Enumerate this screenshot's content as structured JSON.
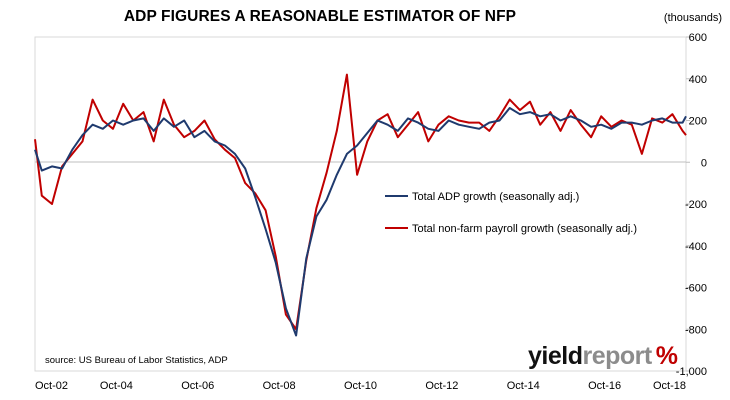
{
  "chart_data": {
    "type": "line",
    "title": "ADP FIGURES A REASONABLE ESTIMATOR OF NFP",
    "unit_label": "(thousands)",
    "x_tick_labels": [
      "Oct-02",
      "Oct-04",
      "Oct-06",
      "Oct-08",
      "Oct-10",
      "Oct-12",
      "Oct-14",
      "Oct-16",
      "Oct-18"
    ],
    "y_ticks": [
      600,
      400,
      200,
      0,
      -200,
      -400,
      -600,
      -800,
      -1000
    ],
    "y_tick_labels": [
      "600",
      "400",
      "200",
      "0",
      "-200",
      "-400",
      "-600",
      "-800",
      "-1,000"
    ],
    "ylim": [
      -1000,
      600
    ],
    "x_range": [
      "2002-10",
      "2018-10"
    ],
    "y_axis_side": "right",
    "grid": false,
    "legend_position": "center-right",
    "source": "source: US Bureau of Labor Statistics, ADP",
    "logo": {
      "part1": "yield",
      "part2": "report",
      "part3": "%"
    },
    "series": [
      {
        "name": "Total ADP growth (seasonally adj.)",
        "color": "#1f3a6e",
        "x": [
          "2002-10",
          "2002-12",
          "2003-03",
          "2003-06",
          "2003-09",
          "2003-12",
          "2004-03",
          "2004-06",
          "2004-09",
          "2004-12",
          "2005-03",
          "2005-06",
          "2005-09",
          "2005-12",
          "2006-03",
          "2006-06",
          "2006-09",
          "2006-12",
          "2007-03",
          "2007-06",
          "2007-09",
          "2007-12",
          "2008-03",
          "2008-06",
          "2008-09",
          "2008-12",
          "2009-03",
          "2009-06",
          "2009-09",
          "2009-12",
          "2010-03",
          "2010-06",
          "2010-09",
          "2010-12",
          "2011-03",
          "2011-06",
          "2011-09",
          "2011-12",
          "2012-03",
          "2012-06",
          "2012-09",
          "2012-12",
          "2013-03",
          "2013-06",
          "2013-09",
          "2013-12",
          "2014-03",
          "2014-06",
          "2014-09",
          "2014-12",
          "2015-03",
          "2015-06",
          "2015-09",
          "2015-12",
          "2016-03",
          "2016-06",
          "2016-09",
          "2016-12",
          "2017-03",
          "2017-06",
          "2017-09",
          "2017-12",
          "2018-03",
          "2018-06",
          "2018-09",
          "2018-10"
        ],
        "values": [
          60,
          -40,
          -20,
          -30,
          60,
          130,
          180,
          160,
          200,
          180,
          200,
          210,
          150,
          210,
          170,
          200,
          120,
          150,
          100,
          80,
          40,
          -30,
          -170,
          -320,
          -480,
          -700,
          -830,
          -460,
          -260,
          -180,
          -60,
          40,
          80,
          140,
          200,
          180,
          150,
          210,
          190,
          160,
          150,
          200,
          180,
          170,
          160,
          190,
          200,
          260,
          230,
          240,
          220,
          230,
          200,
          220,
          200,
          170,
          180,
          160,
          190,
          190,
          180,
          200,
          210,
          190,
          190,
          220
        ]
      },
      {
        "name": "Total non-farm payroll growth (seasonally adj.)",
        "color": "#c00000",
        "x": [
          "2002-10",
          "2002-12",
          "2003-03",
          "2003-06",
          "2003-09",
          "2003-12",
          "2004-03",
          "2004-06",
          "2004-09",
          "2004-12",
          "2005-03",
          "2005-06",
          "2005-09",
          "2005-12",
          "2006-03",
          "2006-06",
          "2006-09",
          "2006-12",
          "2007-03",
          "2007-06",
          "2007-09",
          "2007-12",
          "2008-03",
          "2008-06",
          "2008-09",
          "2008-12",
          "2009-03",
          "2009-06",
          "2009-09",
          "2009-12",
          "2010-03",
          "2010-06",
          "2010-09",
          "2010-12",
          "2011-03",
          "2011-06",
          "2011-09",
          "2011-12",
          "2012-03",
          "2012-06",
          "2012-09",
          "2012-12",
          "2013-03",
          "2013-06",
          "2013-09",
          "2013-12",
          "2014-03",
          "2014-06",
          "2014-09",
          "2014-12",
          "2015-03",
          "2015-06",
          "2015-09",
          "2015-12",
          "2016-03",
          "2016-06",
          "2016-09",
          "2016-12",
          "2017-03",
          "2017-06",
          "2017-09",
          "2017-12",
          "2018-03",
          "2018-06",
          "2018-09",
          "2018-10"
        ],
        "values": [
          110,
          -160,
          -200,
          -20,
          40,
          100,
          300,
          200,
          160,
          280,
          200,
          240,
          100,
          300,
          180,
          120,
          150,
          200,
          110,
          60,
          20,
          -100,
          -150,
          -230,
          -450,
          -730,
          -800,
          -470,
          -220,
          -50,
          150,
          420,
          -60,
          100,
          200,
          230,
          120,
          180,
          240,
          100,
          180,
          220,
          200,
          190,
          190,
          150,
          220,
          300,
          250,
          290,
          180,
          240,
          150,
          250,
          180,
          120,
          220,
          170,
          200,
          180,
          40,
          210,
          190,
          230,
          150,
          130
        ]
      }
    ]
  }
}
